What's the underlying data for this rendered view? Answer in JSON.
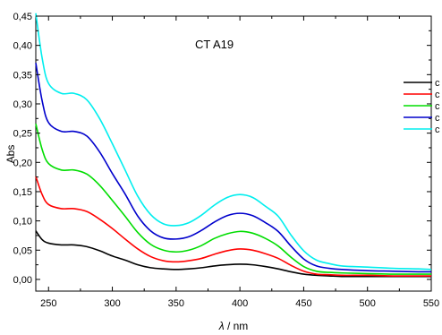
{
  "chart_data": {
    "type": "line",
    "title": "CT A19",
    "xlabel_symbol": "λ",
    "xlabel_unit": " / nm",
    "ylabel": "Abs",
    "xlim": [
      240,
      550
    ],
    "ylim": [
      -0.02,
      0.45
    ],
    "x_ticks": [
      250,
      300,
      350,
      400,
      450,
      500,
      550
    ],
    "y_ticks": [
      0.0,
      0.05,
      0.1,
      0.15,
      0.2,
      0.25,
      0.3,
      0.35,
      0.4,
      0.45
    ],
    "y_tick_labels": [
      "0,00",
      "0,05",
      "0,10",
      "0,15",
      "0,20",
      "0,25",
      "0,30",
      "0,35",
      "0,40",
      "0,45"
    ],
    "grid": false,
    "legend_position": "right",
    "series": [
      {
        "name": "c",
        "color": "#000000",
        "points": [
          [
            240,
            0.083
          ],
          [
            245,
            0.068
          ],
          [
            250,
            0.062
          ],
          [
            260,
            0.059
          ],
          [
            270,
            0.059
          ],
          [
            280,
            0.056
          ],
          [
            290,
            0.049
          ],
          [
            300,
            0.04
          ],
          [
            310,
            0.033
          ],
          [
            320,
            0.025
          ],
          [
            330,
            0.02
          ],
          [
            340,
            0.018
          ],
          [
            350,
            0.017
          ],
          [
            360,
            0.018
          ],
          [
            370,
            0.02
          ],
          [
            380,
            0.023
          ],
          [
            390,
            0.025
          ],
          [
            400,
            0.026
          ],
          [
            410,
            0.025
          ],
          [
            420,
            0.022
          ],
          [
            430,
            0.018
          ],
          [
            440,
            0.013
          ],
          [
            450,
            0.009
          ],
          [
            460,
            0.007
          ],
          [
            470,
            0.006
          ],
          [
            480,
            0.005
          ],
          [
            500,
            0.005
          ],
          [
            520,
            0.005
          ],
          [
            540,
            0.005
          ],
          [
            550,
            0.005
          ]
        ]
      },
      {
        "name": "c",
        "color": "#ff0000",
        "points": [
          [
            240,
            0.176
          ],
          [
            245,
            0.145
          ],
          [
            250,
            0.128
          ],
          [
            260,
            0.121
          ],
          [
            270,
            0.121
          ],
          [
            280,
            0.116
          ],
          [
            290,
            0.103
          ],
          [
            300,
            0.087
          ],
          [
            310,
            0.069
          ],
          [
            320,
            0.052
          ],
          [
            330,
            0.039
          ],
          [
            340,
            0.032
          ],
          [
            350,
            0.03
          ],
          [
            360,
            0.032
          ],
          [
            370,
            0.036
          ],
          [
            380,
            0.043
          ],
          [
            390,
            0.049
          ],
          [
            400,
            0.052
          ],
          [
            410,
            0.05
          ],
          [
            420,
            0.044
          ],
          [
            430,
            0.036
          ],
          [
            440,
            0.024
          ],
          [
            450,
            0.014
          ],
          [
            460,
            0.009
          ],
          [
            470,
            0.008
          ],
          [
            480,
            0.007
          ],
          [
            500,
            0.007
          ],
          [
            520,
            0.006
          ],
          [
            540,
            0.006
          ],
          [
            550,
            0.006
          ]
        ]
      },
      {
        "name": "c",
        "color": "#00dd00",
        "points": [
          [
            240,
            0.266
          ],
          [
            245,
            0.222
          ],
          [
            250,
            0.198
          ],
          [
            260,
            0.187
          ],
          [
            270,
            0.187
          ],
          [
            280,
            0.18
          ],
          [
            290,
            0.161
          ],
          [
            300,
            0.135
          ],
          [
            310,
            0.108
          ],
          [
            320,
            0.08
          ],
          [
            330,
            0.06
          ],
          [
            340,
            0.05
          ],
          [
            350,
            0.047
          ],
          [
            360,
            0.05
          ],
          [
            370,
            0.058
          ],
          [
            380,
            0.07
          ],
          [
            390,
            0.078
          ],
          [
            400,
            0.082
          ],
          [
            410,
            0.079
          ],
          [
            420,
            0.07
          ],
          [
            430,
            0.057
          ],
          [
            440,
            0.038
          ],
          [
            450,
            0.022
          ],
          [
            460,
            0.014
          ],
          [
            470,
            0.012
          ],
          [
            480,
            0.011
          ],
          [
            500,
            0.01
          ],
          [
            520,
            0.009
          ],
          [
            540,
            0.009
          ],
          [
            550,
            0.009
          ]
        ]
      },
      {
        "name": "c",
        "color": "#0000cc",
        "points": [
          [
            240,
            0.37
          ],
          [
            245,
            0.305
          ],
          [
            250,
            0.268
          ],
          [
            260,
            0.253
          ],
          [
            270,
            0.253
          ],
          [
            280,
            0.245
          ],
          [
            290,
            0.218
          ],
          [
            300,
            0.181
          ],
          [
            310,
            0.146
          ],
          [
            320,
            0.108
          ],
          [
            330,
            0.083
          ],
          [
            340,
            0.071
          ],
          [
            350,
            0.069
          ],
          [
            360,
            0.073
          ],
          [
            370,
            0.084
          ],
          [
            380,
            0.098
          ],
          [
            390,
            0.109
          ],
          [
            400,
            0.113
          ],
          [
            410,
            0.109
          ],
          [
            420,
            0.097
          ],
          [
            430,
            0.082
          ],
          [
            440,
            0.057
          ],
          [
            450,
            0.035
          ],
          [
            460,
            0.023
          ],
          [
            470,
            0.019
          ],
          [
            480,
            0.017
          ],
          [
            500,
            0.015
          ],
          [
            520,
            0.014
          ],
          [
            540,
            0.013
          ],
          [
            550,
            0.013
          ]
        ]
      },
      {
        "name": "c",
        "color": "#00eeee",
        "points": [
          [
            240,
            0.455
          ],
          [
            245,
            0.378
          ],
          [
            250,
            0.335
          ],
          [
            260,
            0.318
          ],
          [
            270,
            0.318
          ],
          [
            280,
            0.307
          ],
          [
            290,
            0.275
          ],
          [
            300,
            0.232
          ],
          [
            310,
            0.187
          ],
          [
            320,
            0.142
          ],
          [
            330,
            0.111
          ],
          [
            340,
            0.095
          ],
          [
            350,
            0.092
          ],
          [
            360,
            0.097
          ],
          [
            370,
            0.11
          ],
          [
            380,
            0.127
          ],
          [
            390,
            0.14
          ],
          [
            400,
            0.145
          ],
          [
            410,
            0.14
          ],
          [
            420,
            0.125
          ],
          [
            430,
            0.108
          ],
          [
            440,
            0.076
          ],
          [
            450,
            0.049
          ],
          [
            460,
            0.033
          ],
          [
            470,
            0.027
          ],
          [
            480,
            0.023
          ],
          [
            500,
            0.021
          ],
          [
            520,
            0.019
          ],
          [
            540,
            0.018
          ],
          [
            550,
            0.017
          ]
        ]
      }
    ]
  }
}
